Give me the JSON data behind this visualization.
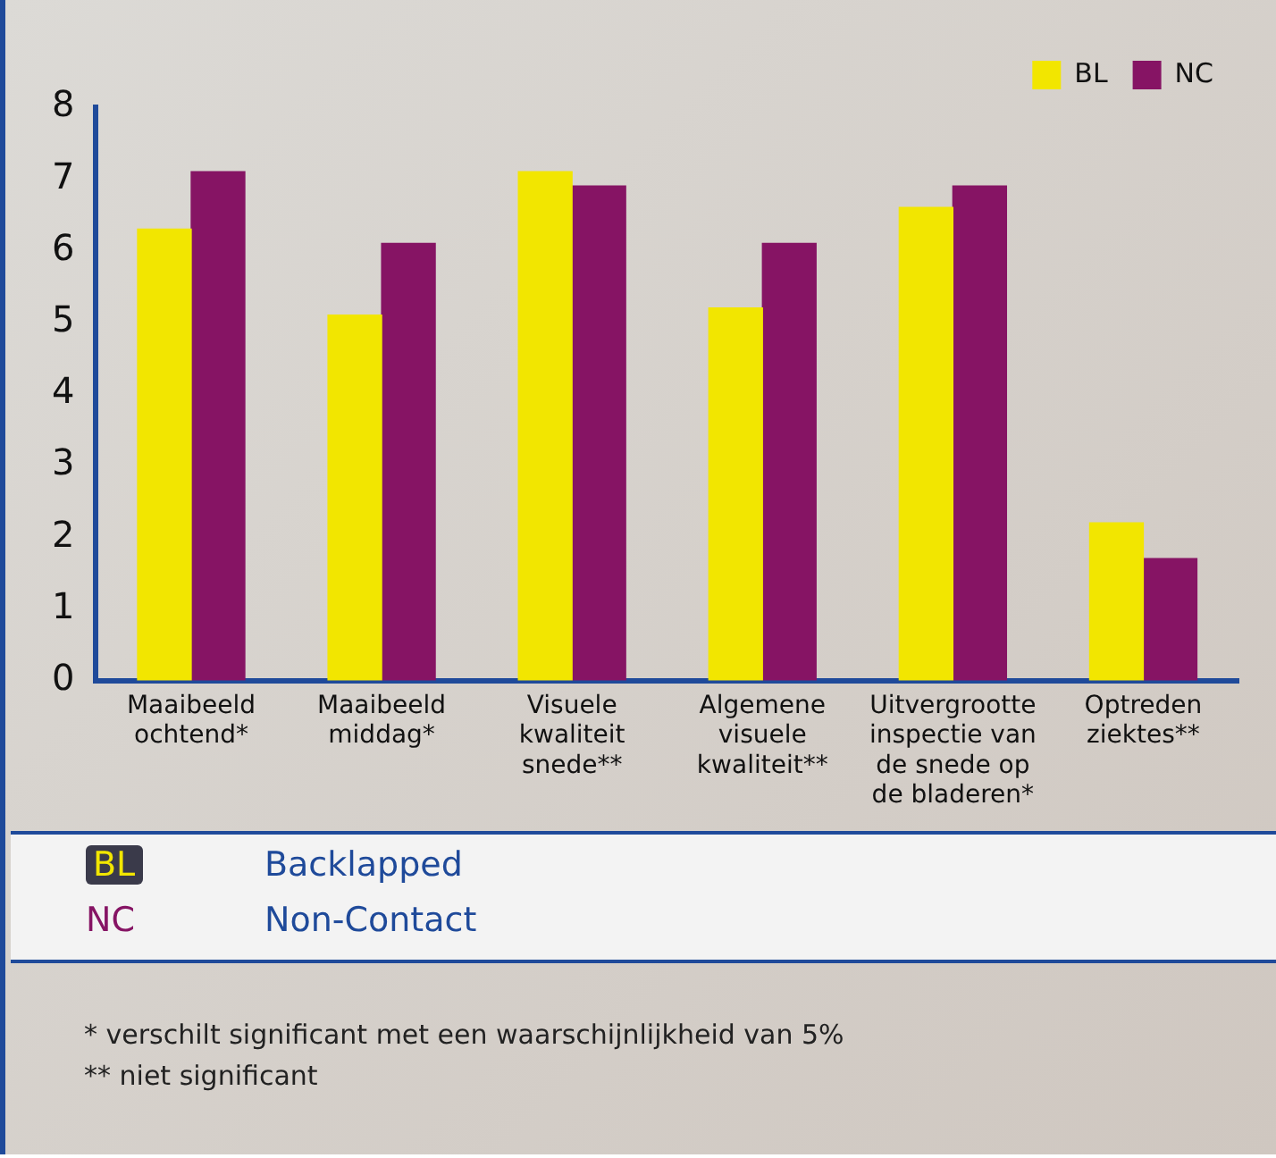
{
  "chart_data": {
    "type": "bar",
    "categories": [
      "Maaibeeld ochtend*",
      "Maaibeeld middag*",
      "Visuele kwaliteit snede**",
      "Algemene visuele kwaliteit**",
      "Uitvergrootte inspectie van de snede op de bladeren*",
      "Optreden ziektes**"
    ],
    "series": [
      {
        "name": "BL",
        "color": "#f2e600",
        "values": [
          6.3,
          5.1,
          7.1,
          5.2,
          6.6,
          2.2
        ]
      },
      {
        "name": "NC",
        "color": "#861464",
        "values": [
          7.1,
          6.1,
          6.9,
          6.1,
          6.9,
          1.7
        ]
      }
    ],
    "ylim": [
      0,
      8
    ],
    "yticks": [
      0,
      1,
      2,
      3,
      4,
      5,
      6,
      7,
      8
    ],
    "grid": false,
    "legend": "top right",
    "annotations": [
      "Backlapped",
      "Non-Contact",
      "* verschilt significant met een waarschijnlijkheid van 5%",
      "** niet significant"
    ]
  }
}
